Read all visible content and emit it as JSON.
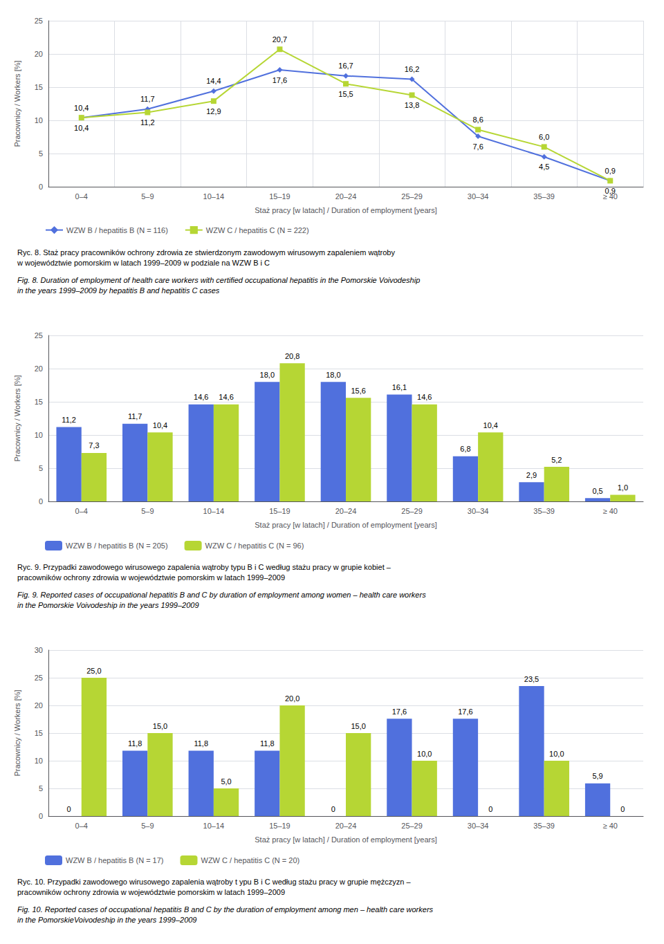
{
  "chart_data": [
    {
      "type": "line",
      "title": "Ryc. 8. Staż pracy pracowników ochrony zdrowia ze stwierdzonym zawodowym wirusowym zapaleniem wątroby\nw województwie pomorskim w latach 1999–2009 w podziale na WZW B i C",
      "subtitle": "Fig. 8. Duration of employment of health care workers with certified occupational hepatitis in the Pomorskie Voivodeship\nin the years 1999–2009 by hepatitis B and hepatitis C cases",
      "xlabel": "Staż pracy [w latach] / Duration of employment [years]",
      "ylabel": "Pracownicy / Workers [%]",
      "categories": [
        "0–4",
        "5–9",
        "10–14",
        "15–19",
        "20–24",
        "25–29",
        "30–34",
        "35–39",
        "≥ 40"
      ],
      "series": [
        {
          "name": "WZW B / hepatitis B (N = 116)",
          "marker": "diamond",
          "values": [
            10.4,
            11.7,
            14.4,
            17.6,
            16.7,
            16.2,
            7.6,
            4.5,
            0.9
          ],
          "value_labels": [
            "10,4",
            "11,7",
            "14,4",
            "17,6",
            "16,7",
            "16,2",
            "7,6",
            "4,5",
            "0,9"
          ]
        },
        {
          "name": "WZW C / hepatitis C (N = 222)",
          "marker": "square",
          "values": [
            10.4,
            11.2,
            12.9,
            20.7,
            15.5,
            13.8,
            8.6,
            6.0,
            0.9
          ],
          "value_labels": [
            "10,4",
            "11,2",
            "12,9",
            "20,7",
            "15,5",
            "13,8",
            "8,6",
            "6,0",
            "0,9"
          ]
        }
      ],
      "ylim": [
        0,
        25
      ],
      "yticks": [
        0,
        5,
        10,
        15,
        20,
        25
      ],
      "grid": true,
      "legend": "bottom",
      "data_labels": true
    },
    {
      "type": "bar",
      "title": "Ryc. 9. Przypadki zawodowego wirusowego zapalenia wątroby typu B i C według stażu pracy w grupie kobiet –\npracowników ochrony zdrowia w województwie pomorskim w latach 1999–2009",
      "subtitle": "Fig. 9. Reported cases of occupational hepatitis B and C by duration of employment among women – health care workers\nin the Pomorskie Voivodeship in the years 1999–2009",
      "xlabel": "Staż pracy [w latach] / Duration of employment [years]",
      "ylabel": "Pracownicy / Workers [%]",
      "categories": [
        "0–4",
        "5–9",
        "10–14",
        "15–19",
        "20–24",
        "25–29",
        "30–34",
        "35–39",
        "≥ 40"
      ],
      "series": [
        {
          "name": "WZW B / hepatitis B (N = 205)",
          "values": [
            11.2,
            11.7,
            14.6,
            18.0,
            18.0,
            16.1,
            6.8,
            2.9,
            0.5
          ],
          "value_labels": [
            "11,2",
            "11,7",
            "14,6",
            "18,0",
            "18,0",
            "16,1",
            "6,8",
            "2,9",
            "0,5"
          ]
        },
        {
          "name": "WZW C / hepatitis C (N = 96)",
          "values": [
            7.3,
            10.4,
            14.6,
            20.8,
            15.6,
            14.6,
            10.4,
            5.2,
            1.0
          ],
          "value_labels": [
            "7,3",
            "10,4",
            "14,6",
            "20,8",
            "15,6",
            "14,6",
            "10,4",
            "5,2",
            "1,0"
          ]
        }
      ],
      "ylim": [
        0,
        25
      ],
      "yticks": [
        0,
        5,
        10,
        15,
        20,
        25
      ],
      "grid": "y",
      "legend": "bottom",
      "data_labels": true
    },
    {
      "type": "bar",
      "title": "Ryc. 10. Przypadki zawodowego wirusowego zapalenia wątroby t ypu B i C według stażu pracy w grupie mężczyzn –\npracowników ochrony zdrowia w województwie pomorskim w latach 1999–2009",
      "subtitle": "Fig. 10. Reported cases of occupational hepatitis B and C by the duration of employment among men – health care workers\nin the PomorskieVoivodeship in the years 1999–2009",
      "xlabel": "Staż pracy [w latach] / Duration of employment [years]",
      "ylabel": "Pracownicy / Workers [%]",
      "categories": [
        "0–4",
        "5–9",
        "10–14",
        "15–19",
        "20–24",
        "25–29",
        "30–34",
        "35–39",
        "≥ 40"
      ],
      "series": [
        {
          "name": "WZW B / hepatitis B (N = 17)",
          "values": [
            0.0,
            11.8,
            11.8,
            11.8,
            0.0,
            17.6,
            17.6,
            23.5,
            5.9
          ],
          "value_labels": [
            "0",
            "11,8",
            "11,8",
            "11,8",
            "0",
            "17,6",
            "17,6",
            "23,5",
            "5,9"
          ]
        },
        {
          "name": "WZW C / hepatitis C (N = 20)",
          "values": [
            25.0,
            15.0,
            5.0,
            20.0,
            15.0,
            10.0,
            0.0,
            10.0,
            0.0
          ],
          "value_labels": [
            "25,0",
            "15,0",
            "5,0",
            "20,0",
            "15,0",
            "10,0",
            "0",
            "10,0",
            "0"
          ]
        }
      ],
      "ylim": [
        0,
        30
      ],
      "yticks": [
        0,
        5,
        10,
        15,
        20,
        25,
        30
      ],
      "grid": "y",
      "legend": "bottom",
      "data_labels": true
    }
  ]
}
